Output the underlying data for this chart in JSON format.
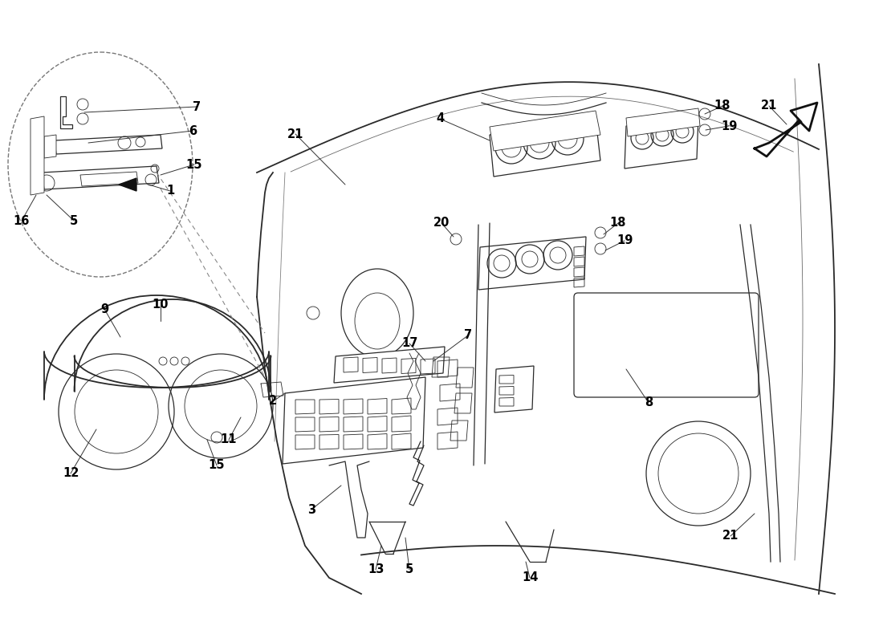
{
  "background_color": "#ffffff",
  "line_color": "#2a2a2a",
  "label_color": "#000000",
  "label_fontsize": 10.5,
  "fig_width": 11.0,
  "fig_height": 8.0,
  "dpi": 100
}
